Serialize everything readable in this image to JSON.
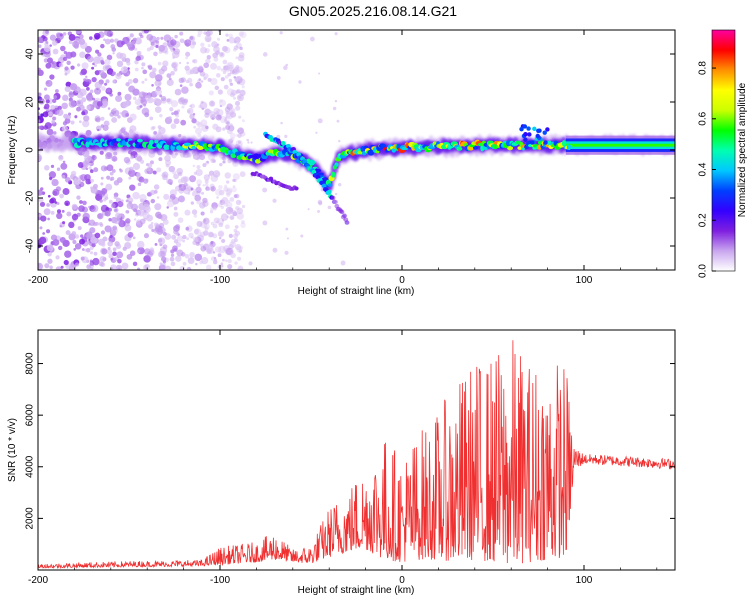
{
  "title": "GN05.2025.216.08.14.G21",
  "chart_data": [
    {
      "type": "heatmap",
      "xlabel": "Height of straight line (km)",
      "ylabel": "Frequency (Hz)",
      "xlim": [
        -200,
        150
      ],
      "ylim": [
        -50,
        50
      ],
      "x_ticks": [
        -200,
        -100,
        0,
        100
      ],
      "y_ticks": [
        -40,
        -20,
        0,
        20,
        40
      ],
      "colorbar": {
        "label": "Normalized spectral amplitude",
        "range": [
          0,
          0.95
        ],
        "ticks": [
          0.0,
          0.2,
          0.4,
          0.6,
          0.8
        ],
        "tick_labels": [
          "0.0",
          "0.2",
          "0.4",
          "0.6",
          "0.8"
        ],
        "colormap": [
          "#ffffff",
          "#c9a6ef",
          "#7e1fe0",
          "#3300ff",
          "#0040ff",
          "#00c8ff",
          "#00ffb0",
          "#00ff00",
          "#ccff00",
          "#ffff00",
          "#ff9000",
          "#ff0000",
          "#ff00a0"
        ]
      },
      "features": {
        "scatter_noise_region_x": [
          -200,
          -95
        ],
        "main_ridge": [
          {
            "x": -150,
            "f": 3
          },
          {
            "x": -120,
            "f": 2
          },
          {
            "x": -100,
            "f": 1
          },
          {
            "x": -90,
            "f": -2
          },
          {
            "x": -80,
            "f": -4
          },
          {
            "x": -70,
            "f": -1
          },
          {
            "x": -60,
            "f": -2
          },
          {
            "x": -50,
            "f": -6
          },
          {
            "x": -40,
            "f": -15
          },
          {
            "x": -35,
            "f": -3
          },
          {
            "x": -20,
            "f": 0
          },
          {
            "x": 0,
            "f": 1
          },
          {
            "x": 50,
            "f": 2
          },
          {
            "x": 90,
            "f": 2
          },
          {
            "x": 150,
            "f": 2
          }
        ],
        "descending_branch": [
          {
            "x": -75,
            "f": 6
          },
          {
            "x": -60,
            "f": 0
          },
          {
            "x": -50,
            "f": -8
          },
          {
            "x": -40,
            "f": -18
          },
          {
            "x": -30,
            "f": -30
          }
        ],
        "lower_branch": [
          {
            "x": -80,
            "f": -10
          },
          {
            "x": -70,
            "f": -13
          },
          {
            "x": -60,
            "f": -16
          }
        ]
      }
    },
    {
      "type": "line",
      "xlabel": "Height of straight line (km)",
      "ylabel": "SNR (10 * v/v)",
      "xlim": [
        -200,
        150
      ],
      "ylim": [
        0,
        9300
      ],
      "x_ticks": [
        -200,
        -100,
        0,
        100
      ],
      "y_ticks": [
        2000,
        4000,
        6000,
        8000
      ],
      "color": "#f03030",
      "envelope": [
        {
          "x": -200,
          "base": 80,
          "peak": 250
        },
        {
          "x": -150,
          "base": 120,
          "peak": 350
        },
        {
          "x": -110,
          "base": 150,
          "peak": 400
        },
        {
          "x": -100,
          "base": 200,
          "peak": 900
        },
        {
          "x": -80,
          "base": 300,
          "peak": 1100
        },
        {
          "x": -70,
          "base": 400,
          "peak": 1500
        },
        {
          "x": -60,
          "base": 300,
          "peak": 800
        },
        {
          "x": -50,
          "base": 250,
          "peak": 1000
        },
        {
          "x": -40,
          "base": 500,
          "peak": 2500
        },
        {
          "x": -30,
          "base": 700,
          "peak": 3200
        },
        {
          "x": -20,
          "base": 800,
          "peak": 4200
        },
        {
          "x": -10,
          "base": 400,
          "peak": 5300
        },
        {
          "x": 0,
          "base": 300,
          "peak": 4500
        },
        {
          "x": 10,
          "base": 400,
          "peak": 5500
        },
        {
          "x": 20,
          "base": 400,
          "peak": 6200
        },
        {
          "x": 30,
          "base": 300,
          "peak": 7400
        },
        {
          "x": 40,
          "base": 400,
          "peak": 8200
        },
        {
          "x": 50,
          "base": 300,
          "peak": 8400
        },
        {
          "x": 60,
          "base": 200,
          "peak": 9200
        },
        {
          "x": 70,
          "base": 300,
          "peak": 8200
        },
        {
          "x": 80,
          "base": 400,
          "peak": 8400
        },
        {
          "x": 90,
          "base": 500,
          "peak": 8200
        },
        {
          "x": 95,
          "base": 3800,
          "peak": 4800
        },
        {
          "x": 100,
          "base": 4100,
          "peak": 4500
        },
        {
          "x": 150,
          "base": 3900,
          "peak": 4300
        }
      ]
    }
  ]
}
